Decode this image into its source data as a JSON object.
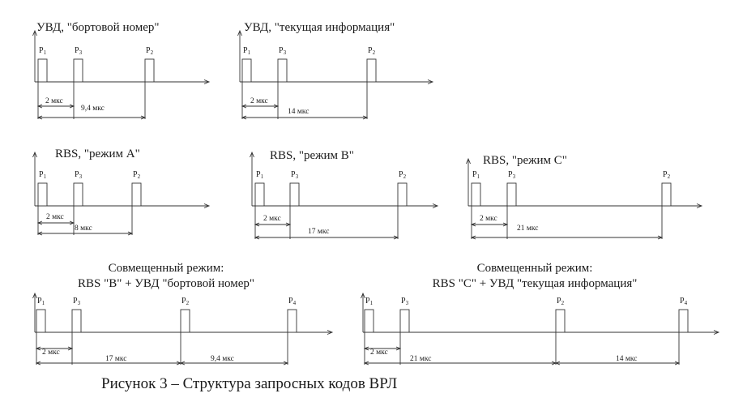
{
  "caption": "Рисунок 3 – Структура запросных кодов ВРЛ",
  "diagrams": [
    {
      "id": "uvd-bort",
      "title": [
        "УВД, \"бортовой номер\""
      ],
      "pulses": [
        {
          "main": "P",
          "sub": "1"
        },
        {
          "main": "P",
          "sub": "3"
        },
        {
          "main": "P",
          "sub": "2"
        }
      ],
      "intervals": [
        "2 мкс",
        "9,4 мкс"
      ]
    },
    {
      "id": "uvd-tek",
      "title": [
        "УВД, \"текущая информация\""
      ],
      "pulses": [
        {
          "main": "P",
          "sub": "1"
        },
        {
          "main": "P",
          "sub": "3"
        },
        {
          "main": "P",
          "sub": "2"
        }
      ],
      "intervals": [
        "2 мкс",
        "14 мкс"
      ]
    },
    {
      "id": "rbs-a",
      "title": [
        "RBS, \"режим А\""
      ],
      "pulses": [
        {
          "main": "P",
          "sub": "1"
        },
        {
          "main": "P",
          "sub": "3"
        },
        {
          "main": "P",
          "sub": "2"
        }
      ],
      "intervals": [
        "2 мкс",
        "8 мкс"
      ]
    },
    {
      "id": "rbs-b",
      "title": [
        "RBS, \"режим В\""
      ],
      "pulses": [
        {
          "main": "P",
          "sub": "1"
        },
        {
          "main": "P",
          "sub": "3"
        },
        {
          "main": "P",
          "sub": "2"
        }
      ],
      "intervals": [
        "2 мкс",
        "17 мкс"
      ]
    },
    {
      "id": "rbs-c",
      "title": [
        "RBS, \"режим С\""
      ],
      "pulses": [
        {
          "main": "P",
          "sub": "1"
        },
        {
          "main": "P",
          "sub": "3"
        },
        {
          "main": "P",
          "sub": "2"
        }
      ],
      "intervals": [
        "2 мкс",
        "21 мкс"
      ]
    },
    {
      "id": "comb-1",
      "title": [
        "Совмещенный режим:",
        "RBS \"В\" + УВД \"бортовой номер\""
      ],
      "pulses": [
        {
          "main": "P",
          "sub": "1"
        },
        {
          "main": "P",
          "sub": "3"
        },
        {
          "main": "P",
          "sub": "2"
        },
        {
          "main": "P",
          "sub": "4"
        }
      ],
      "intervals": [
        "2 мкс",
        "17 мкс",
        "9,4 мкс"
      ]
    },
    {
      "id": "comb-2",
      "title": [
        "Совмещенный режим:",
        "RBS \"С\" + УВД \"текущая информация\""
      ],
      "pulses": [
        {
          "main": "P",
          "sub": "1"
        },
        {
          "main": "P",
          "sub": "3"
        },
        {
          "main": "P",
          "sub": "2"
        },
        {
          "main": "P",
          "sub": "4"
        }
      ],
      "intervals": [
        "2 мкс",
        "21 мкс",
        "14 мкс"
      ]
    }
  ]
}
